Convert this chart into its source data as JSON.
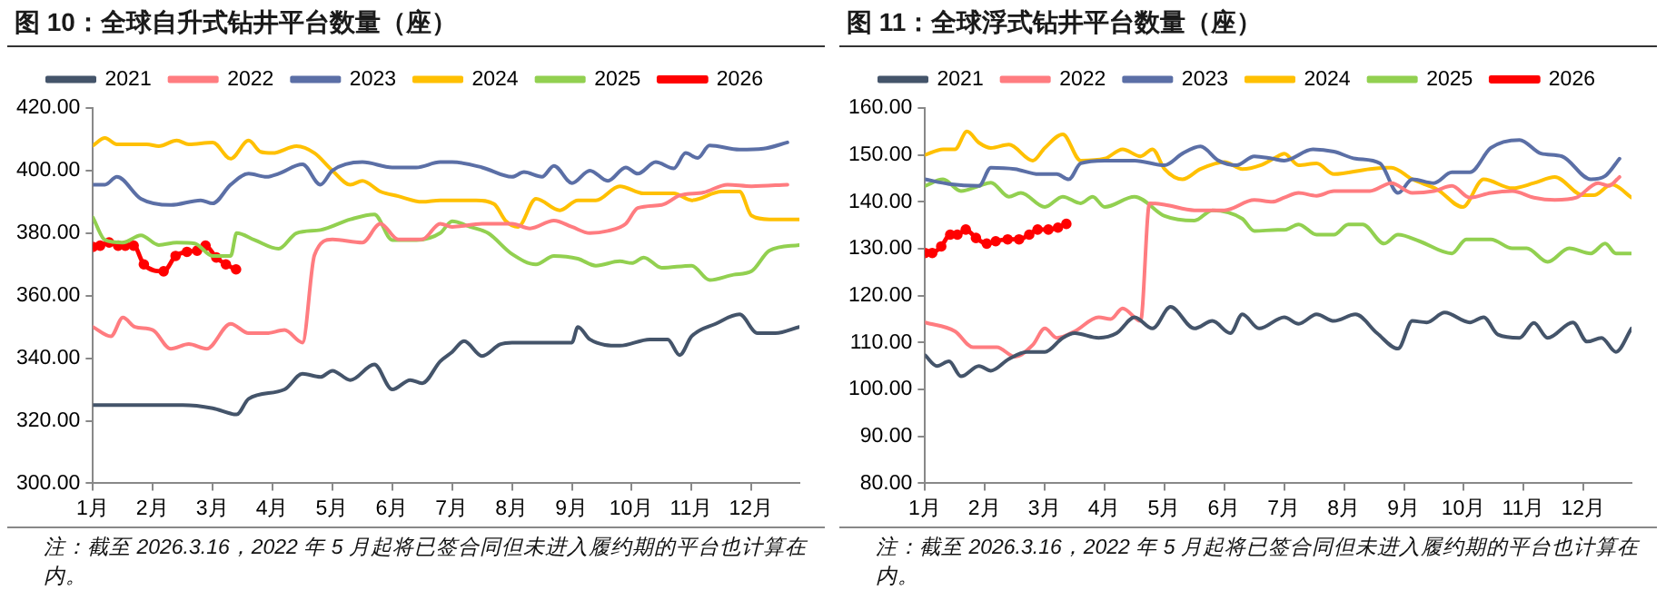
{
  "chart_data": [
    {
      "type": "line",
      "title": "图 10：全球自升式钻井平台数量（座）",
      "legend": "top",
      "grid": false,
      "marker": "none",
      "line_style": "solid",
      "xlim": [
        1,
        12.8
      ],
      "xticks": [
        {
          "value": 1,
          "label": "1月"
        },
        {
          "value": 2,
          "label": "2月"
        },
        {
          "value": 3,
          "label": "3月"
        },
        {
          "value": 4,
          "label": "4月"
        },
        {
          "value": 5,
          "label": "5月"
        },
        {
          "value": 6,
          "label": "6月"
        },
        {
          "value": 7,
          "label": "7月"
        },
        {
          "value": 8,
          "label": "8月"
        },
        {
          "value": 9,
          "label": "9月"
        },
        {
          "value": 10,
          "label": "10月"
        },
        {
          "value": 11,
          "label": "11月"
        },
        {
          "value": 12,
          "label": "12月"
        }
      ],
      "ylim": [
        300,
        420
      ],
      "yticks": [
        {
          "value": 300,
          "label": "300.00"
        },
        {
          "value": 320,
          "label": "320.00"
        },
        {
          "value": 340,
          "label": "340.00"
        },
        {
          "value": 360,
          "label": "360.00"
        },
        {
          "value": 380,
          "label": "380.00"
        },
        {
          "value": 400,
          "label": "400.00"
        },
        {
          "value": 420,
          "label": "420.00"
        }
      ],
      "annotations": [
        "注：截至 2026.3.16，2022 年 5 月起将已签合同但未进入履约期的平台也计算在内。"
      ],
      "series": [
        {
          "name": "2021",
          "color": "#44546a",
          "x": [
            1,
            1.5,
            2,
            2.5,
            3,
            3.4,
            3.6,
            4.2,
            4.5,
            4.8,
            5,
            5.3,
            5.7,
            6,
            6.3,
            6.5,
            6.8,
            7,
            7.2,
            7.5,
            7.8,
            8,
            9,
            9.1,
            9.3,
            9.8,
            10.3,
            10.6,
            10.8,
            11,
            11.4,
            11.8,
            12.1,
            12.4,
            12.8
          ],
          "values": [
            325,
            325,
            325,
            325,
            324,
            322,
            327,
            330,
            335,
            334,
            336,
            333,
            338,
            330,
            333,
            332,
            339,
            342,
            345.5,
            340.7,
            344.4,
            345,
            345,
            350,
            346,
            344,
            346,
            346,
            341,
            347,
            351,
            354,
            348,
            348,
            350
          ]
        },
        {
          "name": "2022",
          "color": "#ff7c80",
          "x": [
            1,
            1.3,
            1.5,
            1.7,
            2,
            2.3,
            2.6,
            2.9,
            3.3,
            3.6,
            3.9,
            4.2,
            4.5,
            4.7,
            5,
            5.5,
            5.8,
            6.1,
            6.5,
            6.8,
            7,
            7.5,
            8,
            8.3,
            8.7,
            9,
            9.3,
            9.6,
            9.9,
            10.1,
            10.5,
            10.8,
            11.2,
            11.6,
            12,
            12.6
          ],
          "values": [
            350,
            347,
            353,
            350,
            349,
            343,
            344.5,
            343,
            351,
            348,
            348,
            349,
            345,
            373,
            378,
            377,
            383,
            378,
            378,
            383,
            382,
            383,
            383,
            381.5,
            384,
            382,
            380,
            380.7,
            383,
            388,
            389,
            392,
            393,
            395.5,
            395,
            395.5
          ]
        },
        {
          "name": "2023",
          "color": "#5b6fa6",
          "x": [
            1,
            1.2,
            1.4,
            1.8,
            2.3,
            2.8,
            3,
            3.3,
            3.6,
            3.9,
            4.1,
            4.5,
            4.8,
            5,
            5.5,
            6,
            6.4,
            6.8,
            7,
            7.5,
            8,
            8.2,
            8.5,
            8.7,
            9,
            9.3,
            9.6,
            9.9,
            10.1,
            10.4,
            10.7,
            10.9,
            11.1,
            11.3,
            11.8,
            12.2,
            12.6
          ],
          "values": [
            395.5,
            395.5,
            398,
            391,
            389,
            390.5,
            389.5,
            395.5,
            399,
            398,
            399,
            402,
            395.5,
            400,
            402.7,
            401,
            401,
            402.7,
            402.7,
            401,
            398,
            399.5,
            398,
            401.5,
            396,
            400,
            396.7,
            401,
            399,
            402.7,
            400.7,
            405.6,
            404,
            408,
            406.7,
            407,
            409
          ]
        },
        {
          "name": "2024",
          "color": "#ffc000",
          "x": [
            1,
            1.2,
            1.4,
            1.9,
            2.1,
            2.4,
            2.6,
            3,
            3.3,
            3.6,
            3.8,
            4,
            4.4,
            4.7,
            5,
            5.3,
            5.5,
            5.8,
            6.1,
            6.5,
            6.8,
            7,
            7.4,
            7.7,
            7.9,
            8.1,
            8.4,
            8.8,
            9.1,
            9.4,
            9.8,
            10.2,
            10.7,
            11,
            11.5,
            11.8,
            12,
            12.3,
            12.8
          ],
          "values": [
            408,
            410.4,
            408.4,
            408.4,
            407.8,
            409.6,
            408.4,
            409,
            403.8,
            409.6,
            406,
            405.6,
            407.8,
            405.6,
            400,
            395.5,
            396.7,
            393.3,
            391.8,
            390,
            390.5,
            390.5,
            390.5,
            389.3,
            383.8,
            382,
            391,
            387.3,
            390.5,
            390.5,
            395,
            392.7,
            392.7,
            390.5,
            393.3,
            393.3,
            385.6,
            384.4,
            384.4
          ]
        },
        {
          "name": "2025",
          "color": "#92d050",
          "x": [
            1,
            1.2,
            1.5,
            1.8,
            2.1,
            2.4,
            2.7,
            3,
            3.3,
            3.4,
            3.7,
            4.1,
            4.4,
            4.8,
            5.3,
            5.7,
            6,
            6.4,
            6.8,
            7,
            7.3,
            7.6,
            8,
            8.4,
            8.7,
            9.1,
            9.4,
            9.8,
            10,
            10.2,
            10.5,
            11,
            11.3,
            11.7,
            12,
            12.3,
            12.8
          ],
          "values": [
            385,
            377.8,
            377,
            379.3,
            376.2,
            377,
            376.7,
            372.7,
            372.7,
            380,
            377.8,
            375,
            380,
            381,
            384.4,
            386,
            377.8,
            377.8,
            380,
            383.8,
            382,
            380,
            373.3,
            370,
            372.7,
            371.8,
            369.6,
            371,
            370.4,
            372.2,
            368.9,
            369.6,
            365,
            366.7,
            367.8,
            374.4,
            376.2
          ]
        },
        {
          "name": "2026",
          "color": "#ff0000",
          "marker": "circle",
          "x": [
            1,
            1.12,
            1.27,
            1.42,
            1.54,
            1.68,
            1.85,
            2.18,
            2.38,
            2.57,
            2.74,
            2.88,
            3.06,
            3.22,
            3.39
          ],
          "values": [
            375.6,
            376,
            377,
            376,
            376,
            376,
            370,
            367.8,
            372.7,
            374,
            374.4,
            376,
            372.2,
            370,
            368.4
          ]
        }
      ]
    },
    {
      "type": "line",
      "title": "图 11：全球浮式钻井平台数量（座）",
      "legend": "top",
      "grid": false,
      "marker": "none",
      "line_style": "solid",
      "xlim": [
        1,
        12.8
      ],
      "xticks": [
        {
          "value": 1,
          "label": "1月"
        },
        {
          "value": 2,
          "label": "2月"
        },
        {
          "value": 3,
          "label": "3月"
        },
        {
          "value": 4,
          "label": "4月"
        },
        {
          "value": 5,
          "label": "5月"
        },
        {
          "value": 6,
          "label": "6月"
        },
        {
          "value": 7,
          "label": "7月"
        },
        {
          "value": 8,
          "label": "8月"
        },
        {
          "value": 9,
          "label": "9月"
        },
        {
          "value": 10,
          "label": "10月"
        },
        {
          "value": 11,
          "label": "11月"
        },
        {
          "value": 12,
          "label": "12月"
        }
      ],
      "ylim": [
        80,
        160
      ],
      "yticks": [
        {
          "value": 80,
          "label": "80.00"
        },
        {
          "value": 90,
          "label": "90.00"
        },
        {
          "value": 100,
          "label": "100.00"
        },
        {
          "value": 110,
          "label": "110.00"
        },
        {
          "value": 120,
          "label": "120.00"
        },
        {
          "value": 130,
          "label": "130.00"
        },
        {
          "value": 140,
          "label": "140.00"
        },
        {
          "value": 150,
          "label": "150.00"
        },
        {
          "value": 160,
          "label": "160.00"
        }
      ],
      "annotations": [
        "注：截至 2026.3.16，2022 年 5 月起将已签合同但未进入履约期的平台也计算在内。"
      ],
      "series": [
        {
          "name": "2021",
          "color": "#44546a",
          "x": [
            1,
            1.2,
            1.4,
            1.6,
            1.9,
            2.1,
            2.4,
            2.7,
            3,
            3.3,
            3.5,
            3.9,
            4.2,
            4.5,
            4.8,
            5.1,
            5.5,
            5.8,
            6.1,
            6.3,
            6.58,
            7,
            7.24,
            7.54,
            7.83,
            8.19,
            8.55,
            8.9,
            9.14,
            9.38,
            9.68,
            10.1,
            10.33,
            10.57,
            10.93,
            11.17,
            11.4,
            11.82,
            12.06,
            12.3,
            12.54,
            12.8
          ],
          "values": [
            107.3,
            105,
            106,
            102.8,
            105,
            104,
            106.5,
            108,
            108,
            111,
            112,
            111,
            112,
            115.4,
            113,
            117.6,
            113,
            114.6,
            112,
            116,
            113,
            115.4,
            114,
            116,
            114.6,
            116,
            112,
            108.7,
            114.6,
            114.3,
            116.4,
            114.3,
            115.4,
            111.7,
            111,
            114.2,
            111,
            114.3,
            110.2,
            111,
            108,
            113
          ]
        },
        {
          "name": "2022",
          "color": "#ff7c80",
          "x": [
            1,
            1.5,
            1.8,
            2.2,
            2.5,
            2.8,
            3,
            3.2,
            3.5,
            3.9,
            4.1,
            4.3,
            4.6,
            4.75,
            5,
            5.5,
            6,
            6.5,
            6.8,
            7,
            7.24,
            7.54,
            7.83,
            8.43,
            8.79,
            9.14,
            9.5,
            9.8,
            10.1,
            10.45,
            10.81,
            11.17,
            11.52,
            11.88,
            12.24,
            12.42,
            12.6
          ],
          "values": [
            114.3,
            112.4,
            109,
            109,
            107,
            109.5,
            113,
            111,
            112.4,
            115.4,
            115,
            117.3,
            114.6,
            139.7,
            139.4,
            138.2,
            138.2,
            140.4,
            140,
            140.9,
            141.9,
            141.3,
            142.3,
            142.3,
            144,
            141.9,
            142.3,
            143.4,
            140.9,
            141.9,
            142.3,
            140.9,
            140.4,
            140.9,
            144,
            143.4,
            145.3
          ]
        },
        {
          "name": "2023",
          "color": "#5b6fa6",
          "x": [
            1,
            1.4,
            1.9,
            2.1,
            2.5,
            2.9,
            3.2,
            3.4,
            3.6,
            4,
            4.5,
            5,
            5.3,
            5.6,
            5.9,
            6.2,
            6.5,
            6.8,
            7,
            7.48,
            7.83,
            8.19,
            8.6,
            8.9,
            9.14,
            9.5,
            9.8,
            10.1,
            10.45,
            10.93,
            11.29,
            11.64,
            12.12,
            12.36,
            12.6
          ],
          "values": [
            144.8,
            143.8,
            143.4,
            147.3,
            147,
            145.9,
            145.9,
            144.8,
            148.2,
            148.8,
            148.8,
            147.8,
            150.3,
            151.8,
            148.8,
            147.8,
            149.7,
            149.2,
            148.8,
            151.2,
            150.7,
            149.2,
            148.2,
            141.9,
            144.8,
            144,
            146.3,
            146.3,
            151.5,
            153.2,
            150.3,
            149.7,
            144.8,
            145.5,
            149.2
          ]
        },
        {
          "name": "2024",
          "color": "#ffc000",
          "x": [
            1,
            1.3,
            1.5,
            1.7,
            1.9,
            2.1,
            2.4,
            2.8,
            3,
            3.3,
            3.6,
            4,
            4.3,
            4.6,
            4.8,
            5,
            5.3,
            5.6,
            6,
            6.3,
            6.6,
            6.89,
            7,
            7.24,
            7.54,
            7.83,
            8.43,
            8.79,
            9.14,
            9.56,
            9.98,
            10.33,
            10.81,
            11.17,
            11.52,
            11.99,
            12.17,
            12.47,
            12.8
          ],
          "values": [
            150,
            151.2,
            151.2,
            155,
            152.6,
            151.5,
            152.2,
            148.8,
            151.5,
            154.4,
            148.8,
            149.2,
            151.2,
            149.7,
            151.2,
            147,
            144.8,
            147,
            148.5,
            147,
            147.8,
            149.7,
            150.3,
            147.8,
            148.2,
            145.9,
            147,
            147.3,
            144.8,
            142.6,
            138.9,
            144.8,
            142.9,
            144,
            145.3,
            141.4,
            141.4,
            143.7,
            140.9
          ]
        },
        {
          "name": "2025",
          "color": "#92d050",
          "x": [
            1,
            1.3,
            1.6,
            1.9,
            2.1,
            2.4,
            2.6,
            3,
            3.3,
            3.6,
            3.8,
            4,
            4.5,
            5,
            5.5,
            5.8,
            6.3,
            6.5,
            6.89,
            7,
            7.24,
            7.54,
            7.83,
            8.07,
            8.31,
            8.67,
            8.9,
            9.26,
            9.8,
            10.04,
            10.45,
            10.81,
            11.05,
            11.4,
            11.76,
            12.12,
            12.36,
            12.54,
            12.8
          ],
          "values": [
            143.4,
            144.8,
            142.3,
            143.4,
            144.1,
            141.1,
            141.9,
            138.9,
            141.1,
            139.7,
            141.1,
            138.9,
            141.1,
            137,
            136,
            138.2,
            136.4,
            133.8,
            134,
            134,
            135.2,
            133,
            133,
            135.2,
            135.2,
            131.1,
            133,
            131.6,
            129,
            132,
            132,
            130.1,
            130.1,
            127.2,
            130.1,
            129,
            131.1,
            129,
            129
          ]
        },
        {
          "name": "2026",
          "color": "#ff0000",
          "marker": "circle",
          "x": [
            1,
            1.12,
            1.27,
            1.42,
            1.54,
            1.68,
            1.85,
            2.03,
            2.18,
            2.38,
            2.57,
            2.74,
            2.88,
            3.06,
            3.22,
            3.36
          ],
          "values": [
            129.1,
            129.1,
            130.5,
            133,
            133,
            134.1,
            132.3,
            131.1,
            131.6,
            132,
            132,
            133,
            134.1,
            134.1,
            134.5,
            135.3
          ]
        }
      ]
    }
  ]
}
